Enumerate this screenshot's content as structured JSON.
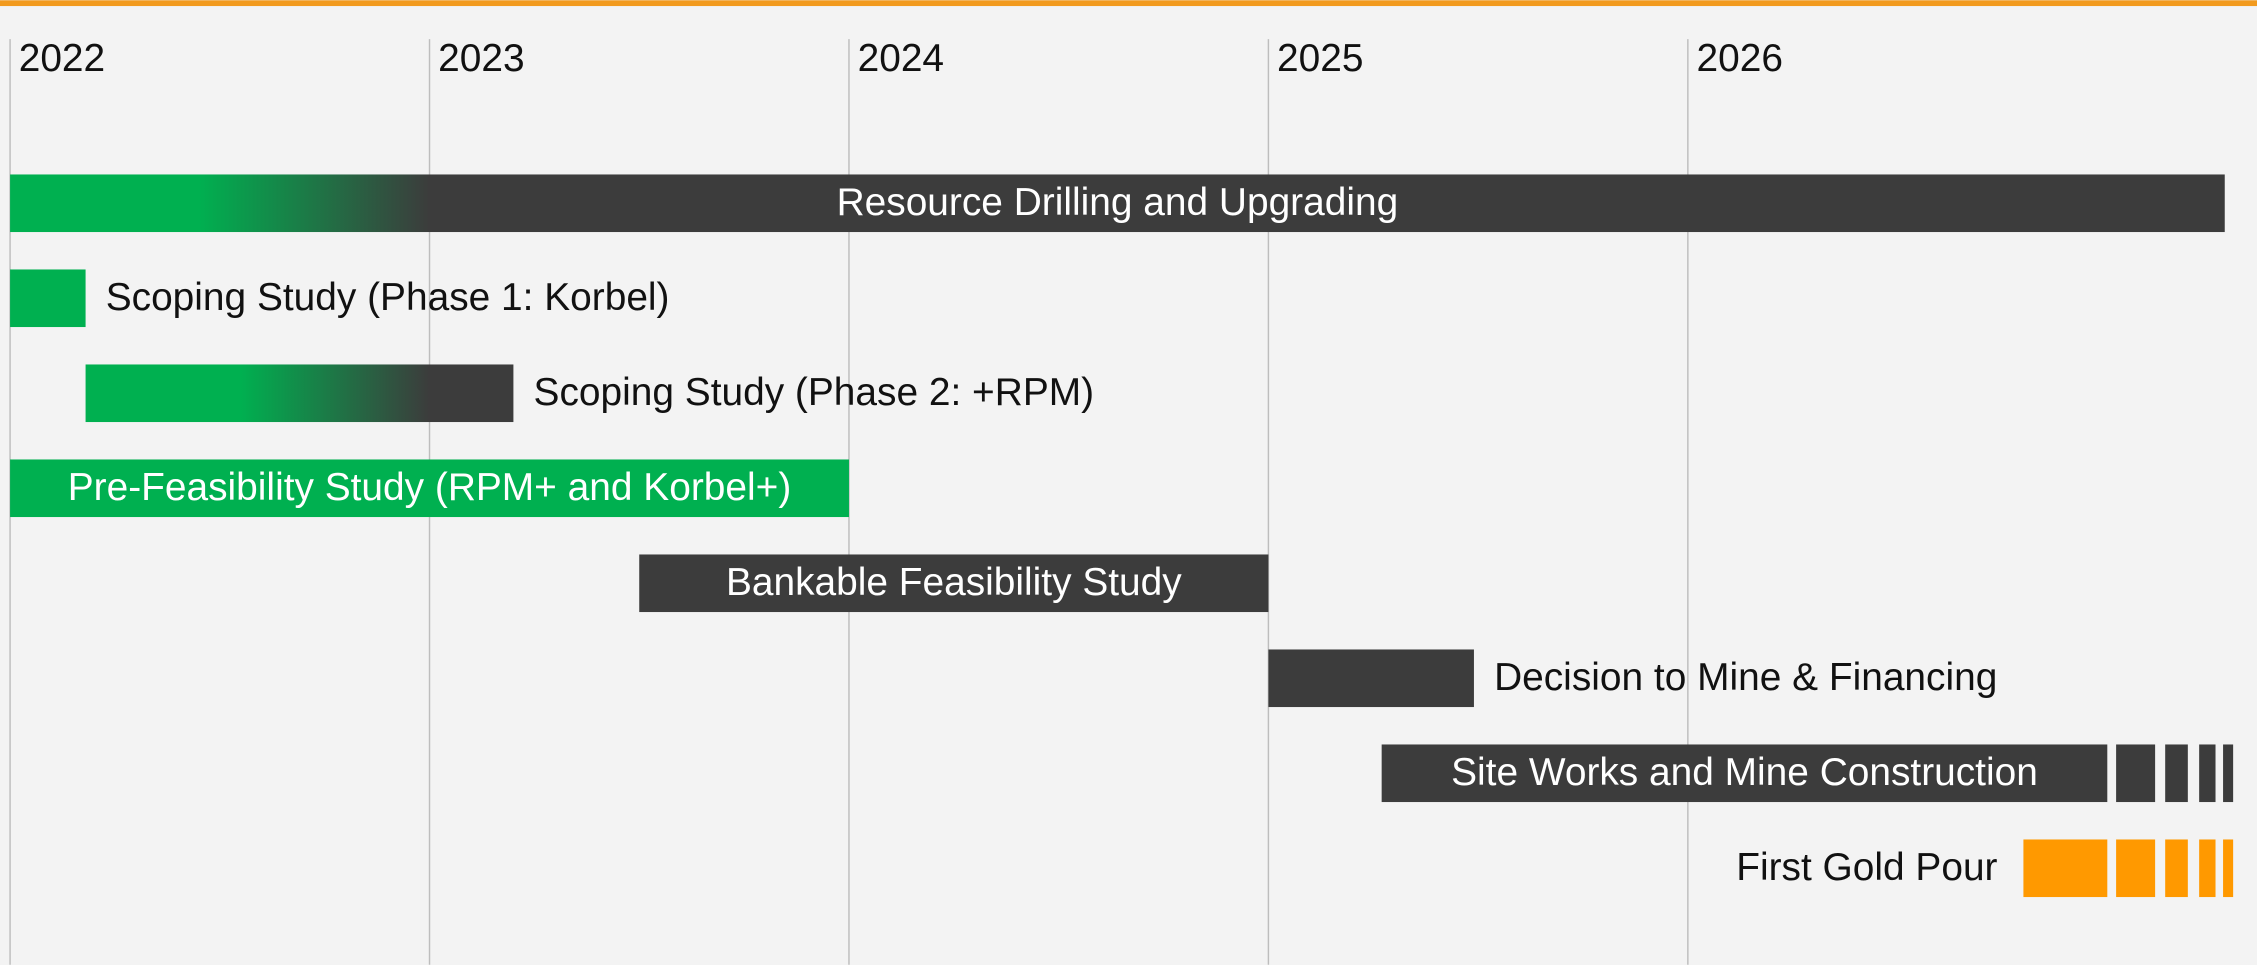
{
  "chart_data": {
    "type": "gantt",
    "xlim": [
      2022,
      2027.3
    ],
    "xticks": [
      2022,
      2023,
      2024,
      2025,
      2026
    ],
    "grid": true,
    "tasks": [
      {
        "name": "Resource Drilling and Upgrading",
        "start": 2022,
        "end": 2027.28,
        "color": "#00b050",
        "fade_color": "#3c3c3c",
        "fade_end": 2023,
        "label_position": "inside"
      },
      {
        "name": "Scoping Study (Phase 1: Korbel)",
        "start": 2022,
        "end": 2022.18,
        "color": "#00b050",
        "label_position": "right"
      },
      {
        "name": "Scoping Study (Phase 2: +RPM)",
        "start": 2022.18,
        "end": 2023.2,
        "color": "#00b050",
        "fade_color": "#3c3c3c",
        "fade_end": 2023,
        "label_position": "right"
      },
      {
        "name": "Pre-Feasibility Study (RPM+ and Korbel+)",
        "start": 2022,
        "end": 2024,
        "color": "#00b050",
        "label_position": "inside"
      },
      {
        "name": "Bankable Feasibility Study",
        "start": 2023.5,
        "end": 2025,
        "color": "#3c3c3c",
        "label_position": "inside"
      },
      {
        "name": "Decision to Mine & Financing",
        "start": 2025,
        "end": 2025.49,
        "color": "#3c3c3c",
        "label_position": "right"
      },
      {
        "name": "Site Works and Mine Construction",
        "start": 2025.27,
        "end": 2027,
        "dashed_end": 2027.3,
        "color": "#3c3c3c",
        "label_position": "inside"
      },
      {
        "name": "First Gold Pour",
        "start": 2026.8,
        "end": 2027,
        "dashed_end": 2027.3,
        "color": "#ff9900",
        "label_position": "left"
      }
    ]
  }
}
